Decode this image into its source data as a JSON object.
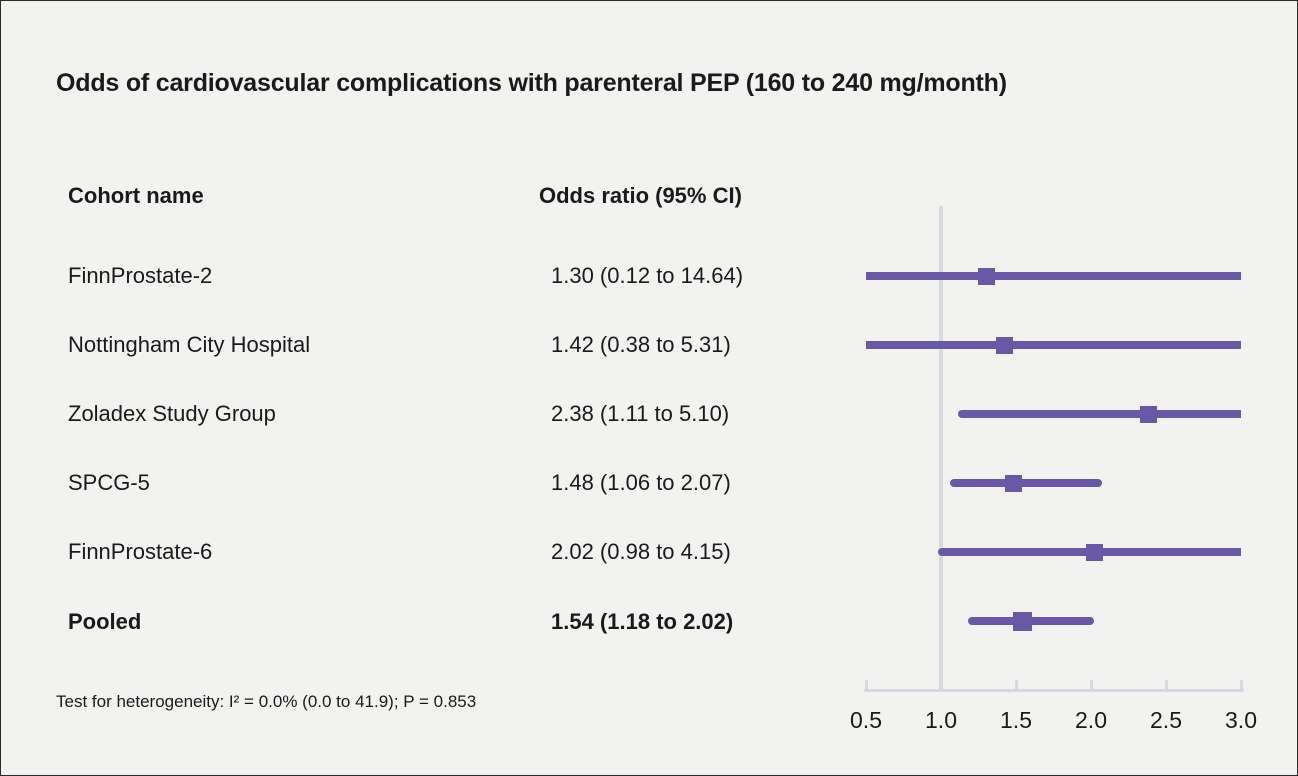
{
  "title": "Odds of cardiovascular complications with parenteral PEP (160 to 240 mg/month)",
  "columns": {
    "cohort": "Cohort name",
    "odds": "Odds ratio (95% CI)"
  },
  "footnote": "Test for heterogeneity: I² = 0.0% (0.0 to 41.9); P = 0.853",
  "colors": {
    "marker_purple": "#6959a5",
    "axis_gray": "#d5dae0",
    "background": "#f2f2f1",
    "text": "#1a1a1a"
  },
  "chart_data": {
    "type": "forest",
    "title": "Odds of cardiovascular complications with parenteral PEP (160 to 240 mg/month)",
    "xlabel": "Odds ratio",
    "xlim": [
      0.5,
      3.0
    ],
    "x_ticks": [
      "0.5",
      "1.0",
      "1.5",
      "2.0",
      "2.5",
      "3.0"
    ],
    "x_tick_values": [
      0.5,
      1.0,
      1.5,
      2.0,
      2.5,
      3.0
    ],
    "reference_line": 1.0,
    "scale": "linear",
    "grid": false,
    "series": [
      {
        "cohort": "FinnProstate-2",
        "or": 1.3,
        "ci_low": 0.12,
        "ci_high": 14.64,
        "label": "1.30 (0.12 to 14.64)",
        "pooled": false
      },
      {
        "cohort": "Nottingham City Hospital",
        "or": 1.42,
        "ci_low": 0.38,
        "ci_high": 5.31,
        "label": "1.42 (0.38 to 5.31)",
        "pooled": false
      },
      {
        "cohort": "Zoladex Study Group",
        "or": 2.38,
        "ci_low": 1.11,
        "ci_high": 5.1,
        "label": "2.38 (1.11 to 5.10)",
        "pooled": false
      },
      {
        "cohort": "SPCG-5",
        "or": 1.48,
        "ci_low": 1.06,
        "ci_high": 2.07,
        "label": "1.48 (1.06 to 2.07)",
        "pooled": false
      },
      {
        "cohort": "FinnProstate-6",
        "or": 2.02,
        "ci_low": 0.98,
        "ci_high": 4.15,
        "label": "2.02 (0.98 to 4.15)",
        "pooled": false
      },
      {
        "cohort": "Pooled",
        "or": 1.54,
        "ci_low": 1.18,
        "ci_high": 2.02,
        "label": "1.54 (1.18 to 2.02)",
        "pooled": true
      }
    ],
    "heterogeneity": {
      "I2_percent": 0.0,
      "I2_ci": [
        0.0,
        41.9
      ],
      "P": 0.853
    }
  }
}
